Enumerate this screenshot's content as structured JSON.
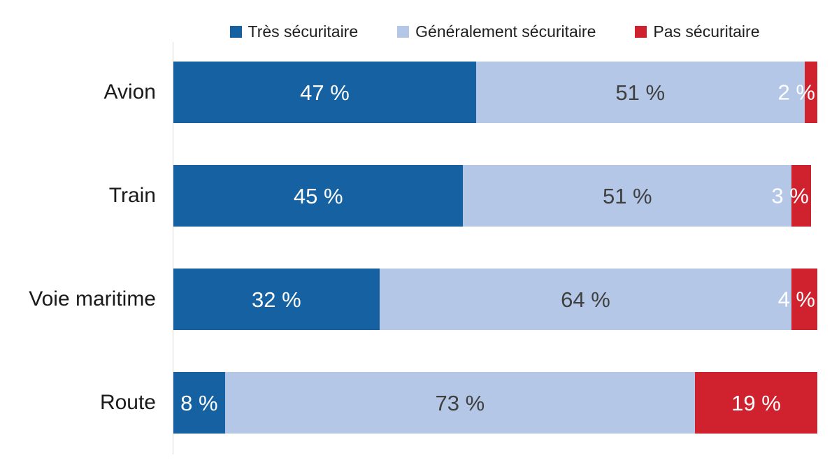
{
  "chart_data": {
    "type": "bar",
    "orientation": "horizontal",
    "stacked": true,
    "unit": "percent",
    "categories": [
      "Avion",
      "Train",
      "Voie maritime",
      "Route"
    ],
    "series": [
      {
        "name": "Très sécuritaire",
        "color": "#1561A2",
        "label_color": "#FFFFFF",
        "values": [
          47,
          45,
          32,
          8
        ]
      },
      {
        "name": "Généralement sécuritaire",
        "color": "#B4C7E7",
        "label_color": "#404040",
        "values": [
          51,
          51,
          64,
          73
        ]
      },
      {
        "name": "Pas sécuritaire",
        "color": "#D0212E",
        "label_color": "#FFFFFF",
        "values": [
          2,
          3,
          4,
          19
        ]
      }
    ],
    "value_suffix": " %",
    "xlim": [
      0,
      100
    ],
    "legend_position": "top",
    "grid": false,
    "axis_line_color": "#D9D9D9",
    "background": "#FFFFFF"
  }
}
